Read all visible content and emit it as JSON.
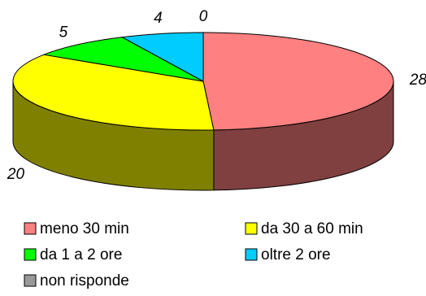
{
  "chart_data": {
    "type": "pie",
    "style": "3d",
    "legend_placement": "bottom",
    "slices": [
      {
        "label": "meno 30 min",
        "value": 28,
        "color": "#ff8080",
        "side_color": "#804040"
      },
      {
        "label": "da 30 a 60 min",
        "value": 20,
        "color": "#ffff00",
        "side_color": "#808000"
      },
      {
        "label": "da 1 a 2 ore",
        "value": 5,
        "color": "#00ff00",
        "side_color": "#008000"
      },
      {
        "label": "oltre 2 ore",
        "value": 4,
        "color": "#00ccff",
        "side_color": "#006680"
      },
      {
        "label": "non risponde",
        "value": 0,
        "color": "#999999",
        "side_color": "#4d4d4d"
      }
    ]
  }
}
